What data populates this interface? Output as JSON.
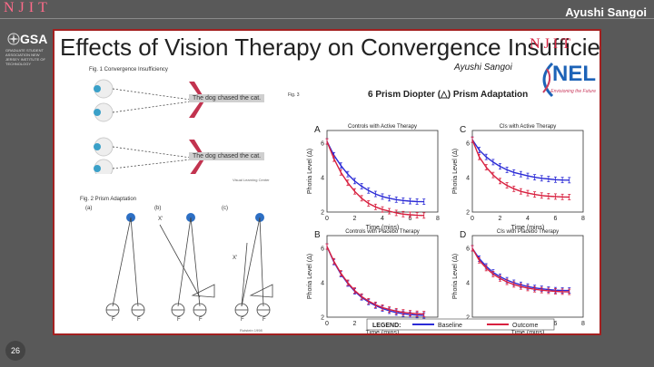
{
  "header": {
    "njit": "NJIT",
    "author": "Ayushi Sangoi"
  },
  "gsa": {
    "name": "GSA",
    "subtitle": "GRADUATE STUDENT ASSOCIATION NEW JERSEY INSTITUTE OF TECHNOLOGY"
  },
  "page_number": "26",
  "slide": {
    "title": "Effects of Vision Therapy on Convergence Insufficiency",
    "njit_logo": "NJIT",
    "author": "Ayushi Sangoi",
    "nel_logo": "NEL",
    "nel_tagline": "Envisioning the Future",
    "fig1_label": "Fig. 1 Convergence Insufficiency",
    "sentence": "The dog chased the cat.",
    "fig1_credit": "Visual Learning Center",
    "fig2_label": "Fig. 2 Prism Adaptation",
    "fig2_panels": [
      "(a)",
      "(b)",
      "(c)"
    ],
    "fig2_x": "X'",
    "fig2_f": "F",
    "fig2_credit": "Rutstein 1998",
    "fig3_label": "Fig. 3",
    "fig3_title": "6 Prism Diopter (△) Prism Adaptation"
  },
  "chart_data": {
    "type": "line",
    "xlabel": "Time (mins)",
    "ylabel": "Phoria Level (Δ)",
    "xlim": [
      0,
      8
    ],
    "xticks": [
      0,
      2,
      4,
      6,
      8
    ],
    "legend": {
      "label": "LEGEND:",
      "placement": "bottom"
    },
    "colors": {
      "Baseline": "#2b2bd6",
      "Outcome": "#d8203f"
    },
    "panels": [
      {
        "letter": "A",
        "title": "Controls with Active Therapy",
        "ylim": [
          2,
          6
        ],
        "yticks": [
          2,
          4,
          6
        ],
        "series": [
          {
            "name": "Baseline",
            "x": [
              0,
              0.5,
              1,
              1.5,
              2,
              2.5,
              3,
              3.5,
              4,
              4.5,
              5,
              5.5,
              6,
              6.5,
              7
            ],
            "y": [
              6.1,
              5.3,
              4.7,
              4.2,
              3.8,
              3.5,
              3.25,
              3.05,
              2.9,
              2.8,
              2.72,
              2.67,
              2.63,
              2.61,
              2.6
            ]
          },
          {
            "name": "Outcome",
            "x": [
              0,
              0.5,
              1,
              1.5,
              2,
              2.5,
              3,
              3.5,
              4,
              4.5,
              5,
              5.5,
              6,
              6.5,
              7
            ],
            "y": [
              6.1,
              5.1,
              4.3,
              3.7,
              3.2,
              2.8,
              2.5,
              2.3,
              2.15,
              2.05,
              1.95,
              1.88,
              1.84,
              1.81,
              1.8
            ]
          }
        ]
      },
      {
        "letter": "C",
        "title": "CIs with Active Therapy",
        "ylim": [
          2,
          6
        ],
        "yticks": [
          2,
          4,
          6
        ],
        "series": [
          {
            "name": "Baseline",
            "x": [
              0,
              0.5,
              1,
              1.5,
              2,
              2.5,
              3,
              3.5,
              4,
              4.5,
              5,
              5.5,
              6,
              6.5,
              7
            ],
            "y": [
              6.2,
              5.6,
              5.2,
              4.9,
              4.65,
              4.45,
              4.3,
              4.2,
              4.1,
              4.02,
              3.96,
              3.92,
              3.88,
              3.86,
              3.85
            ]
          },
          {
            "name": "Outcome",
            "x": [
              0,
              0.5,
              1,
              1.5,
              2,
              2.5,
              3,
              3.5,
              4,
              4.5,
              5,
              5.5,
              6,
              6.5,
              7
            ],
            "y": [
              6.2,
              5.2,
              4.6,
              4.15,
              3.8,
              3.55,
              3.35,
              3.2,
              3.1,
              3.02,
              2.96,
              2.92,
              2.9,
              2.88,
              2.87
            ]
          }
        ]
      },
      {
        "letter": "B",
        "title": "Controls with Placebo Therapy",
        "ylim": [
          2,
          6
        ],
        "yticks": [
          2,
          4,
          6
        ],
        "series": [
          {
            "name": "Baseline",
            "x": [
              0,
              0.5,
              1,
              1.5,
              2,
              2.5,
              3,
              3.5,
              4,
              4.5,
              5,
              5.5,
              6,
              6.5,
              7
            ],
            "y": [
              6.1,
              5.2,
              4.5,
              3.95,
              3.5,
              3.15,
              2.88,
              2.67,
              2.5,
              2.37,
              2.27,
              2.2,
              2.15,
              2.12,
              2.1
            ]
          },
          {
            "name": "Outcome",
            "x": [
              0,
              0.5,
              1,
              1.5,
              2,
              2.5,
              3,
              3.5,
              4,
              4.5,
              5,
              5.5,
              6,
              6.5,
              7
            ],
            "y": [
              6.1,
              5.25,
              4.55,
              4.0,
              3.55,
              3.2,
              2.93,
              2.72,
              2.56,
              2.44,
              2.35,
              2.28,
              2.23,
              2.2,
              2.18
            ]
          }
        ]
      },
      {
        "letter": "D",
        "title": "CIs with Placebo Therapy",
        "ylim": [
          2,
          6
        ],
        "yticks": [
          2,
          4,
          6
        ],
        "series": [
          {
            "name": "Baseline",
            "x": [
              0,
              0.5,
              1,
              1.5,
              2,
              2.5,
              3,
              3.5,
              4,
              4.5,
              5,
              5.5,
              6,
              6.5,
              7
            ],
            "y": [
              6.0,
              5.4,
              4.95,
              4.6,
              4.35,
              4.15,
              4.0,
              3.88,
              3.78,
              3.7,
              3.65,
              3.6,
              3.57,
              3.55,
              3.55
            ]
          },
          {
            "name": "Outcome",
            "x": [
              0,
              0.5,
              1,
              1.5,
              2,
              2.5,
              3,
              3.5,
              4,
              4.5,
              5,
              5.5,
              6,
              6.5,
              7
            ],
            "y": [
              6.0,
              5.3,
              4.85,
              4.5,
              4.25,
              4.05,
              3.9,
              3.78,
              3.69,
              3.62,
              3.57,
              3.53,
              3.5,
              3.48,
              3.47
            ]
          }
        ]
      }
    ]
  }
}
